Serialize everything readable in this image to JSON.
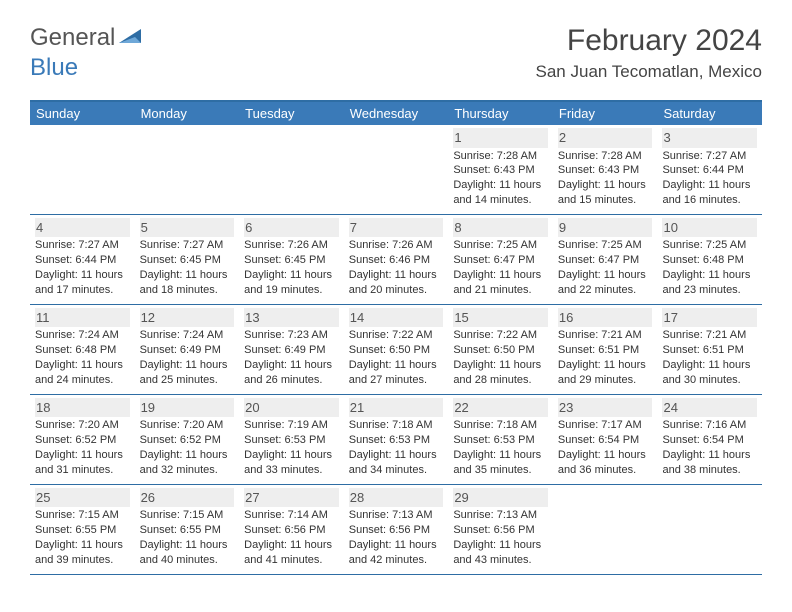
{
  "logo": {
    "general": "General",
    "blue": "Blue"
  },
  "title": "February 2024",
  "location": "San Juan Tecomatlan, Mexico",
  "colors": {
    "header_bg": "#3a7ab8",
    "border": "#2e6da4",
    "daynum_bg": "#eeeeee",
    "text": "#333333",
    "logo_blue": "#3a7ab8",
    "logo_gray": "#555555"
  },
  "weekdays": [
    "Sunday",
    "Monday",
    "Tuesday",
    "Wednesday",
    "Thursday",
    "Friday",
    "Saturday"
  ],
  "weeks": [
    [
      {
        "n": "",
        "sr": "",
        "ss": "",
        "dl": ""
      },
      {
        "n": "",
        "sr": "",
        "ss": "",
        "dl": ""
      },
      {
        "n": "",
        "sr": "",
        "ss": "",
        "dl": ""
      },
      {
        "n": "",
        "sr": "",
        "ss": "",
        "dl": ""
      },
      {
        "n": "1",
        "sr": "Sunrise: 7:28 AM",
        "ss": "Sunset: 6:43 PM",
        "dl": "Daylight: 11 hours and 14 minutes."
      },
      {
        "n": "2",
        "sr": "Sunrise: 7:28 AM",
        "ss": "Sunset: 6:43 PM",
        "dl": "Daylight: 11 hours and 15 minutes."
      },
      {
        "n": "3",
        "sr": "Sunrise: 7:27 AM",
        "ss": "Sunset: 6:44 PM",
        "dl": "Daylight: 11 hours and 16 minutes."
      }
    ],
    [
      {
        "n": "4",
        "sr": "Sunrise: 7:27 AM",
        "ss": "Sunset: 6:44 PM",
        "dl": "Daylight: 11 hours and 17 minutes."
      },
      {
        "n": "5",
        "sr": "Sunrise: 7:27 AM",
        "ss": "Sunset: 6:45 PM",
        "dl": "Daylight: 11 hours and 18 minutes."
      },
      {
        "n": "6",
        "sr": "Sunrise: 7:26 AM",
        "ss": "Sunset: 6:45 PM",
        "dl": "Daylight: 11 hours and 19 minutes."
      },
      {
        "n": "7",
        "sr": "Sunrise: 7:26 AM",
        "ss": "Sunset: 6:46 PM",
        "dl": "Daylight: 11 hours and 20 minutes."
      },
      {
        "n": "8",
        "sr": "Sunrise: 7:25 AM",
        "ss": "Sunset: 6:47 PM",
        "dl": "Daylight: 11 hours and 21 minutes."
      },
      {
        "n": "9",
        "sr": "Sunrise: 7:25 AM",
        "ss": "Sunset: 6:47 PM",
        "dl": "Daylight: 11 hours and 22 minutes."
      },
      {
        "n": "10",
        "sr": "Sunrise: 7:25 AM",
        "ss": "Sunset: 6:48 PM",
        "dl": "Daylight: 11 hours and 23 minutes."
      }
    ],
    [
      {
        "n": "11",
        "sr": "Sunrise: 7:24 AM",
        "ss": "Sunset: 6:48 PM",
        "dl": "Daylight: 11 hours and 24 minutes."
      },
      {
        "n": "12",
        "sr": "Sunrise: 7:24 AM",
        "ss": "Sunset: 6:49 PM",
        "dl": "Daylight: 11 hours and 25 minutes."
      },
      {
        "n": "13",
        "sr": "Sunrise: 7:23 AM",
        "ss": "Sunset: 6:49 PM",
        "dl": "Daylight: 11 hours and 26 minutes."
      },
      {
        "n": "14",
        "sr": "Sunrise: 7:22 AM",
        "ss": "Sunset: 6:50 PM",
        "dl": "Daylight: 11 hours and 27 minutes."
      },
      {
        "n": "15",
        "sr": "Sunrise: 7:22 AM",
        "ss": "Sunset: 6:50 PM",
        "dl": "Daylight: 11 hours and 28 minutes."
      },
      {
        "n": "16",
        "sr": "Sunrise: 7:21 AM",
        "ss": "Sunset: 6:51 PM",
        "dl": "Daylight: 11 hours and 29 minutes."
      },
      {
        "n": "17",
        "sr": "Sunrise: 7:21 AM",
        "ss": "Sunset: 6:51 PM",
        "dl": "Daylight: 11 hours and 30 minutes."
      }
    ],
    [
      {
        "n": "18",
        "sr": "Sunrise: 7:20 AM",
        "ss": "Sunset: 6:52 PM",
        "dl": "Daylight: 11 hours and 31 minutes."
      },
      {
        "n": "19",
        "sr": "Sunrise: 7:20 AM",
        "ss": "Sunset: 6:52 PM",
        "dl": "Daylight: 11 hours and 32 minutes."
      },
      {
        "n": "20",
        "sr": "Sunrise: 7:19 AM",
        "ss": "Sunset: 6:53 PM",
        "dl": "Daylight: 11 hours and 33 minutes."
      },
      {
        "n": "21",
        "sr": "Sunrise: 7:18 AM",
        "ss": "Sunset: 6:53 PM",
        "dl": "Daylight: 11 hours and 34 minutes."
      },
      {
        "n": "22",
        "sr": "Sunrise: 7:18 AM",
        "ss": "Sunset: 6:53 PM",
        "dl": "Daylight: 11 hours and 35 minutes."
      },
      {
        "n": "23",
        "sr": "Sunrise: 7:17 AM",
        "ss": "Sunset: 6:54 PM",
        "dl": "Daylight: 11 hours and 36 minutes."
      },
      {
        "n": "24",
        "sr": "Sunrise: 7:16 AM",
        "ss": "Sunset: 6:54 PM",
        "dl": "Daylight: 11 hours and 38 minutes."
      }
    ],
    [
      {
        "n": "25",
        "sr": "Sunrise: 7:15 AM",
        "ss": "Sunset: 6:55 PM",
        "dl": "Daylight: 11 hours and 39 minutes."
      },
      {
        "n": "26",
        "sr": "Sunrise: 7:15 AM",
        "ss": "Sunset: 6:55 PM",
        "dl": "Daylight: 11 hours and 40 minutes."
      },
      {
        "n": "27",
        "sr": "Sunrise: 7:14 AM",
        "ss": "Sunset: 6:56 PM",
        "dl": "Daylight: 11 hours and 41 minutes."
      },
      {
        "n": "28",
        "sr": "Sunrise: 7:13 AM",
        "ss": "Sunset: 6:56 PM",
        "dl": "Daylight: 11 hours and 42 minutes."
      },
      {
        "n": "29",
        "sr": "Sunrise: 7:13 AM",
        "ss": "Sunset: 6:56 PM",
        "dl": "Daylight: 11 hours and 43 minutes."
      },
      {
        "n": "",
        "sr": "",
        "ss": "",
        "dl": ""
      },
      {
        "n": "",
        "sr": "",
        "ss": "",
        "dl": ""
      }
    ]
  ]
}
